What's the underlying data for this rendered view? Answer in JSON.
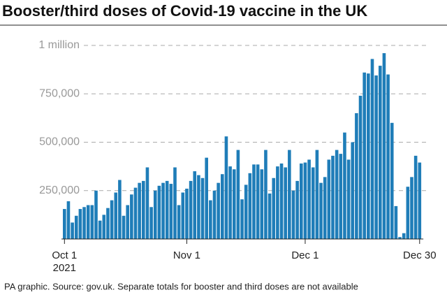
{
  "chart_data": {
    "type": "bar",
    "title": "Booster/third doses of Covid-19 vaccine in the UK",
    "footnote": "PA graphic. Source: gov.uk. Separate totals for booster and third doses are not available",
    "x_sublabel": "2021",
    "color": "#1f7db8",
    "grid": true,
    "ylim": [
      0,
      1000000
    ],
    "yticks": [
      {
        "value": 250000,
        "label": "250,000"
      },
      {
        "value": 500000,
        "label": "500,000"
      },
      {
        "value": 750000,
        "label": "750,000"
      },
      {
        "value": 1000000,
        "label": "1 million"
      }
    ],
    "categories": [
      "Oct 1",
      null,
      null,
      null,
      null,
      null,
      null,
      null,
      null,
      null,
      null,
      null,
      null,
      null,
      null,
      null,
      null,
      null,
      null,
      null,
      null,
      null,
      null,
      null,
      null,
      null,
      null,
      null,
      null,
      null,
      null,
      "Nov 1",
      null,
      null,
      null,
      null,
      null,
      null,
      null,
      null,
      null,
      null,
      null,
      null,
      null,
      null,
      null,
      null,
      null,
      null,
      null,
      null,
      null,
      null,
      null,
      null,
      null,
      null,
      null,
      null,
      null,
      "Dec 1",
      null,
      null,
      null,
      null,
      null,
      null,
      null,
      null,
      null,
      null,
      null,
      null,
      null,
      null,
      null,
      null,
      null,
      null,
      null,
      null,
      null,
      null,
      null,
      null,
      null,
      null,
      null,
      null,
      "Dec 30"
    ],
    "values": [
      155000,
      195000,
      85000,
      120000,
      155000,
      165000,
      175000,
      175000,
      250000,
      95000,
      125000,
      160000,
      200000,
      240000,
      305000,
      120000,
      175000,
      230000,
      265000,
      290000,
      300000,
      370000,
      165000,
      250000,
      275000,
      290000,
      300000,
      285000,
      370000,
      175000,
      240000,
      260000,
      300000,
      350000,
      330000,
      315000,
      420000,
      200000,
      250000,
      290000,
      335000,
      530000,
      375000,
      360000,
      460000,
      205000,
      280000,
      340000,
      385000,
      385000,
      360000,
      460000,
      235000,
      315000,
      375000,
      390000,
      370000,
      460000,
      250000,
      300000,
      390000,
      395000,
      410000,
      370000,
      460000,
      290000,
      320000,
      410000,
      430000,
      460000,
      440000,
      550000,
      410000,
      500000,
      650000,
      740000,
      860000,
      855000,
      930000,
      845000,
      895000,
      960000,
      850000,
      600000,
      170000,
      10000,
      30000,
      270000,
      320000,
      430000,
      395000
    ]
  }
}
